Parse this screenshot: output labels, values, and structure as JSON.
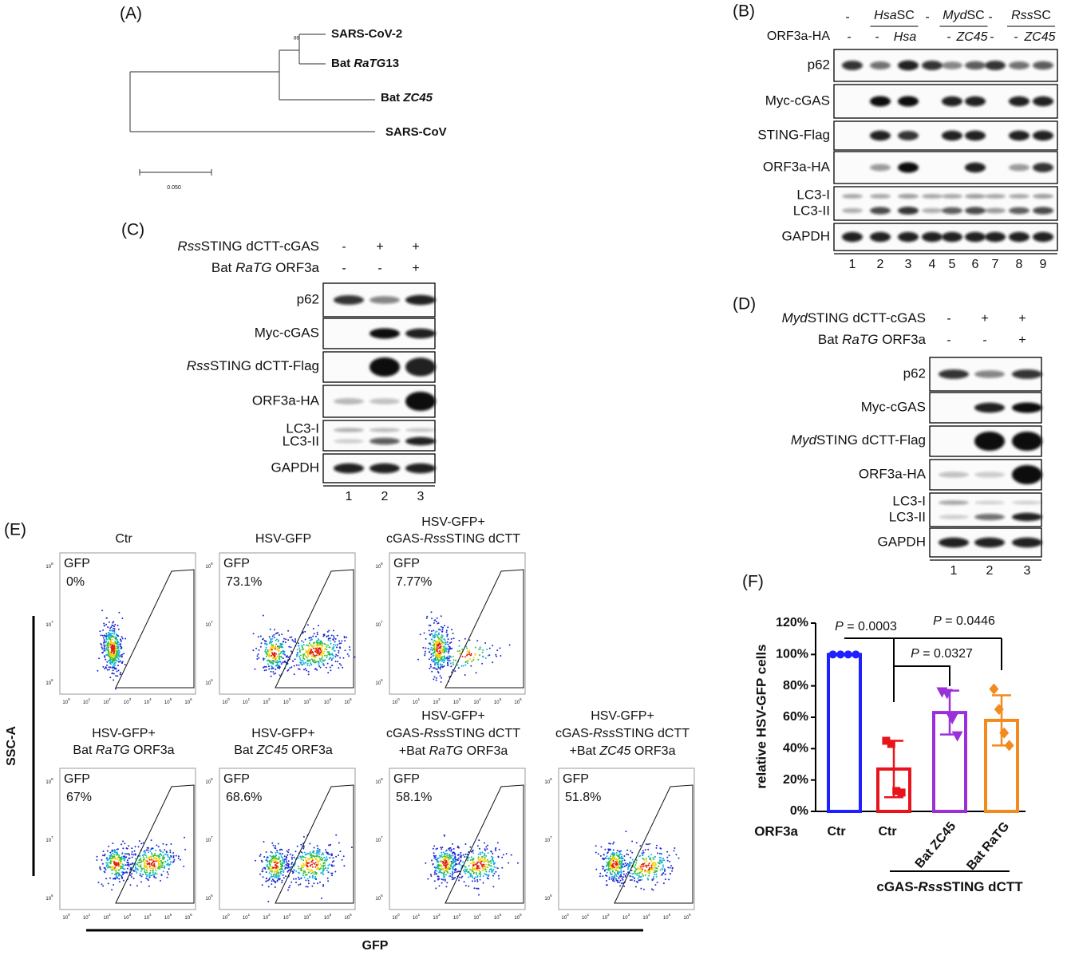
{
  "panel_labels": [
    "(A)",
    "(B)",
    "(C)",
    "(D)",
    "(E)",
    "(F)"
  ],
  "tree": {
    "leaves": [
      [
        "SARS-CoV-2"
      ],
      [
        "Bat ",
        {
          "text": "RaTG",
          "italic": true
        },
        "13"
      ],
      [
        "Bat ",
        {
          "text": "ZC45",
          "italic": true
        }
      ],
      [
        "SARS-CoV"
      ]
    ],
    "bootstrap": "86",
    "scale": "0.050"
  },
  "blot_b": {
    "header_top": [
      "-",
      null,
      null,
      "-",
      null,
      null,
      "-",
      null,
      null
    ],
    "groups": [
      [
        {
          "text": "Hsa",
          "italic": true
        },
        "SC"
      ],
      [
        {
          "text": "Myd",
          "italic": true
        },
        "SC"
      ],
      [
        {
          "text": "Rss",
          "italic": true
        },
        "SC"
      ]
    ],
    "row_label": "ORF3a-HA",
    "header_bottom": [
      "-",
      "-",
      {
        "text": "Hsa",
        "italic": true
      },
      null,
      "-",
      {
        "text": "ZC45",
        "italic": true
      },
      "-",
      "-",
      {
        "text": "ZC45",
        "italic": true
      }
    ],
    "rows": [
      [
        "p62"
      ],
      [
        "Myc-cGAS"
      ],
      [
        "STING-Flag"
      ],
      [
        "ORF3a-HA"
      ],
      [
        "LC3-I",
        "LC3-II"
      ],
      [
        "GAPDH"
      ]
    ],
    "lanes": [
      "1",
      "2",
      "3",
      "4",
      "5",
      "6",
      "7",
      "8",
      "9"
    ]
  },
  "blot_c": {
    "conditions": [
      {
        "label": [
          {
            "text": "Rss",
            "italic": true
          },
          "STING dCTT-cGAS"
        ],
        "lanes": [
          "-",
          "+",
          "+"
        ]
      },
      {
        "label": [
          "Bat ",
          {
            "text": "RaTG",
            "italic": true
          },
          " ORF3a"
        ],
        "lanes": [
          "-",
          "-",
          "+"
        ]
      }
    ],
    "rows": [
      [
        "p62"
      ],
      [
        "Myc-cGAS"
      ],
      [
        [
          {
            "text": "Rss",
            "italic": true
          },
          "STING dCTT-Flag"
        ]
      ],
      [
        "ORF3a-HA"
      ],
      [
        "LC3-I",
        "LC3-II"
      ],
      [
        "GAPDH"
      ]
    ],
    "lanes": [
      "1",
      "2",
      "3"
    ]
  },
  "blot_d": {
    "conditions": [
      {
        "label": [
          {
            "text": "Myd",
            "italic": true
          },
          "STING dCTT-cGAS"
        ],
        "lanes": [
          "-",
          "+",
          "+"
        ]
      },
      {
        "label": [
          "Bat ",
          {
            "text": "RaTG",
            "italic": true
          },
          " ORF3a"
        ],
        "lanes": [
          "-",
          "-",
          "+"
        ]
      }
    ],
    "rows": [
      [
        "p62"
      ],
      [
        "Myc-cGAS"
      ],
      [
        [
          {
            "text": "Myd",
            "italic": true
          },
          "STING dCTT-Flag"
        ]
      ],
      [
        "ORF3a-HA"
      ],
      [
        "LC3-I",
        "LC3-II"
      ],
      [
        "GAPDH"
      ]
    ],
    "lanes": [
      "1",
      "2",
      "3"
    ]
  },
  "flow": {
    "plots": [
      {
        "title": [
          [
            "Ctr"
          ]
        ],
        "gate": "GFP",
        "percent": "0%"
      },
      {
        "title": [
          [
            "HSV-GFP"
          ]
        ],
        "gate": "GFP",
        "percent": "73.1%"
      },
      {
        "title": [
          [
            "HSV-GFP+"
          ],
          [
            "cGAS-",
            {
              "text": "Rss",
              "italic": true
            },
            "STING dCTT"
          ]
        ],
        "gate": "GFP",
        "percent": "7.77%"
      },
      {
        "title": [
          [
            "HSV-GFP+"
          ],
          [
            "Bat ",
            {
              "text": "RaTG",
              "italic": true
            },
            " ORF3a"
          ]
        ],
        "gate": "GFP",
        "percent": "67%"
      },
      {
        "title": [
          [
            "HSV-GFP+"
          ],
          [
            "Bat ",
            {
              "text": "ZC45",
              "italic": true
            },
            " ORF3a"
          ]
        ],
        "gate": "GFP",
        "percent": "68.6%"
      },
      {
        "title": [
          [
            "HSV-GFP+"
          ],
          [
            "cGAS-",
            {
              "text": "Rss",
              "italic": true
            },
            "STING dCTT"
          ],
          [
            "+Bat ",
            {
              "text": "RaTG",
              "italic": true
            },
            " ORF3a"
          ]
        ],
        "gate": "GFP",
        "percent": "58.1%"
      },
      {
        "title": [
          [
            "HSV-GFP+"
          ],
          [
            "cGAS-",
            {
              "text": "Rss",
              "italic": true
            },
            "STING dCTT"
          ],
          [
            "+Bat ",
            {
              "text": "ZC45",
              "italic": true
            },
            " ORF3a"
          ]
        ],
        "gate": "GFP",
        "percent": "51.8%"
      }
    ],
    "xticks": [
      {
        "base": "10",
        "exp": "0"
      },
      {
        "base": "10",
        "exp": "1"
      },
      {
        "base": "10",
        "exp": "2"
      },
      {
        "base": "10",
        "exp": "3"
      },
      {
        "base": "10",
        "exp": "4"
      },
      {
        "base": "10",
        "exp": "5"
      },
      {
        "base": "10",
        "exp": "6"
      }
    ],
    "yticks": [
      {
        "base": "10",
        "exp": "8"
      },
      {
        "base": "10",
        "exp": "7"
      },
      {
        "base": "10",
        "exp": "6"
      }
    ],
    "ylabel": "SSC-A",
    "xlabel": "GFP"
  },
  "chart_data": {
    "type": "bar",
    "ylabel": "relative HSV-GFP cells",
    "categories": [
      "Ctr",
      "Ctr",
      "Bat ZC45",
      "Bat RaTG"
    ],
    "values": [
      100,
      27,
      63,
      58
    ],
    "errors": [
      0,
      18,
      14,
      16
    ],
    "points": [
      [
        100,
        100,
        100,
        100
      ],
      [
        45,
        43,
        13,
        12
      ],
      [
        76,
        75,
        59,
        48
      ],
      [
        78,
        65,
        50,
        42
      ]
    ],
    "colors": [
      "#1f1fff",
      "#e8141b",
      "#9b30d9",
      "#f28a1e"
    ],
    "ylim": [
      0,
      120
    ],
    "yticks": [
      {
        "value": 0,
        "label": "0%"
      },
      {
        "value": 20,
        "label": "20%"
      },
      {
        "value": 40,
        "label": "40%"
      },
      {
        "value": 60,
        "label": "60%"
      },
      {
        "value": 80,
        "label": "80%"
      },
      {
        "value": 100,
        "label": "100%"
      },
      {
        "value": 120,
        "label": "120%"
      }
    ],
    "annotations": [
      [
        {
          "text": "P",
          "italic": true
        },
        " = 0.0003"
      ],
      [
        {
          "text": "P",
          "italic": true
        },
        " = 0.0446"
      ],
      [
        {
          "text": "P",
          "italic": true
        },
        " = 0.0327"
      ]
    ],
    "row_label": "ORF3a",
    "group_label": [
      "cGAS-",
      {
        "text": "Rss",
        "italic": true
      },
      "STING dCTT"
    ]
  }
}
